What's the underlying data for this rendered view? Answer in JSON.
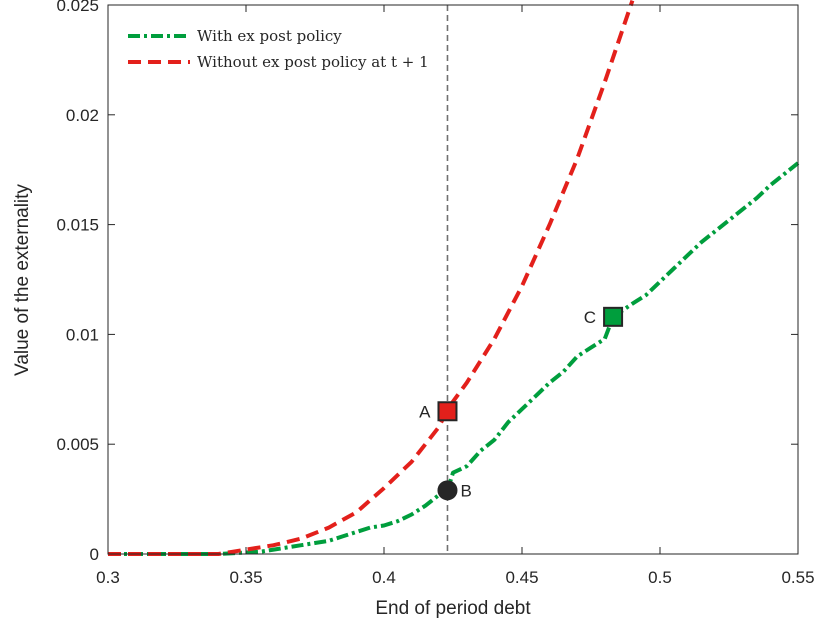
{
  "chart_data": {
    "type": "line",
    "xlabel": "End of period debt",
    "ylabel": "Value of the externality",
    "xlim": [
      0.3,
      0.55
    ],
    "ylim": [
      0,
      0.025
    ],
    "xticks": [
      "0.3",
      "0.35",
      "0.4",
      "0.45",
      "0.5",
      "0.55"
    ],
    "yticks": [
      "0",
      "0.005",
      "0.01",
      "0.015",
      "0.02",
      "0.025"
    ],
    "grid": false,
    "legend_position": "top-left",
    "vline_x": 0.423,
    "series": [
      {
        "name": "With ex post policy",
        "color": "#009e3d",
        "style": "dash-dot",
        "x": [
          0.3,
          0.32,
          0.34,
          0.355,
          0.36,
          0.365,
          0.37,
          0.375,
          0.38,
          0.385,
          0.39,
          0.395,
          0.4,
          0.405,
          0.41,
          0.415,
          0.42,
          0.423,
          0.425,
          0.43,
          0.435,
          0.44,
          0.445,
          0.45,
          0.455,
          0.46,
          0.465,
          0.47,
          0.475,
          0.48,
          0.483,
          0.49,
          0.495,
          0.5,
          0.505,
          0.51,
          0.515,
          0.52,
          0.525,
          0.53,
          0.535,
          0.54,
          0.545,
          0.55
        ],
        "y": [
          0,
          0,
          0,
          0.0001,
          0.0002,
          0.0003,
          0.0004,
          0.0005,
          0.0006,
          0.0008,
          0.001,
          0.0012,
          0.0013,
          0.0015,
          0.0018,
          0.0022,
          0.0027,
          0.0029,
          0.0037,
          0.004,
          0.0047,
          0.0052,
          0.006,
          0.0066,
          0.0072,
          0.0078,
          0.0083,
          0.009,
          0.0094,
          0.0098,
          0.0108,
          0.0114,
          0.0118,
          0.0124,
          0.013,
          0.0136,
          0.0142,
          0.0147,
          0.0152,
          0.0157,
          0.0162,
          0.0168,
          0.0173,
          0.0178
        ]
      },
      {
        "name": "Without ex post policy at t + 1",
        "color": "#e3201b",
        "style": "dashed",
        "x": [
          0.3,
          0.32,
          0.34,
          0.345,
          0.35,
          0.36,
          0.37,
          0.38,
          0.39,
          0.4,
          0.41,
          0.42,
          0.423,
          0.43,
          0.44,
          0.45,
          0.46,
          0.47,
          0.48,
          0.49
        ],
        "y": [
          0,
          0,
          0,
          0.0001,
          0.0002,
          0.0004,
          0.0007,
          0.0012,
          0.0019,
          0.003,
          0.0042,
          0.0058,
          0.0066,
          0.0078,
          0.0098,
          0.0122,
          0.015,
          0.018,
          0.0215,
          0.0252
        ]
      }
    ],
    "points": [
      {
        "label": "A",
        "x": 0.423,
        "y": 0.0065,
        "marker": "square",
        "color": "#e3201b",
        "label_side": "left"
      },
      {
        "label": "B",
        "x": 0.423,
        "y": 0.0029,
        "marker": "circle",
        "color": "#262626",
        "label_side": "right"
      },
      {
        "label": "C",
        "x": 0.483,
        "y": 0.0108,
        "marker": "square",
        "color": "#009e3d",
        "label_side": "left"
      }
    ]
  }
}
